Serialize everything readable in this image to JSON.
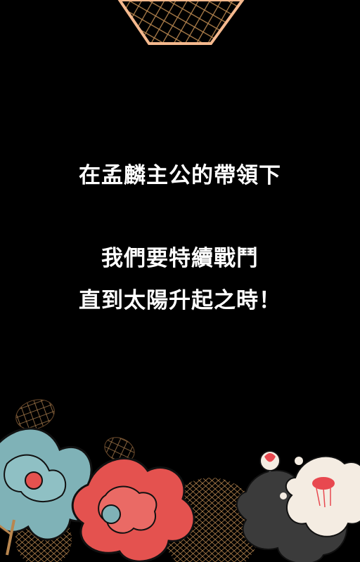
{
  "colors": {
    "background": "#000000",
    "text": "#ffffff",
    "accent_peach": "#f5b98e",
    "flower_teal": "#7fb2b7",
    "flower_red": "#e4524f",
    "flower_white": "#f4ece2",
    "flower_pink": "#e8484f",
    "flower_dark": "#3b3b3b",
    "lattice_gold": "#b8864f"
  },
  "message": {
    "line1": "在孟麟主公的帶領下",
    "line2": "我們要特續戰鬥",
    "line3": "直到太陽升起之時！"
  }
}
